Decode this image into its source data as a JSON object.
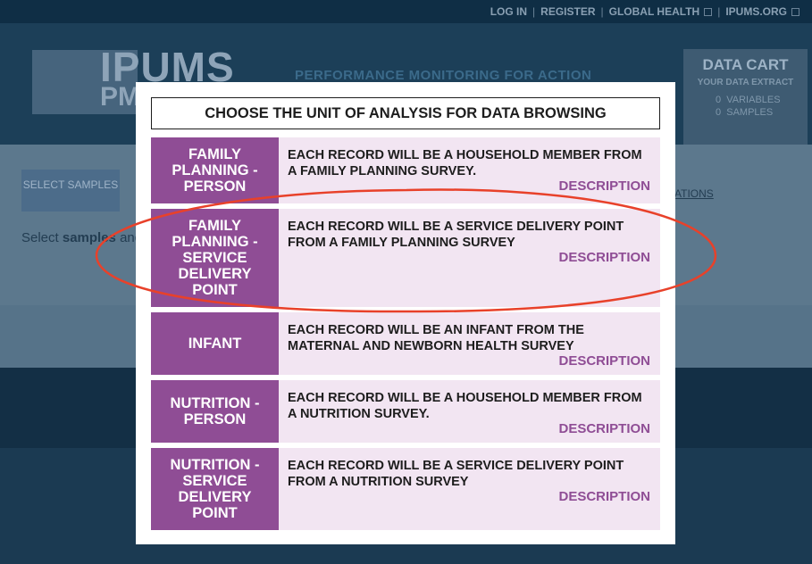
{
  "toplinks": {
    "login": "LOG IN",
    "register": "REGISTER",
    "global_health": "GLOBAL HEALTH",
    "ipums_org": "IPUMS.ORG",
    "separator": "|"
  },
  "header": {
    "logo_text": "IPUMS",
    "logo_sub": "PM",
    "tagline": "PERFORMANCE MONITORING FOR ACTION"
  },
  "datacart": {
    "title": "DATA CART",
    "subtitle": "YOUR DATA EXTRACT",
    "variables_count": "0",
    "variables_label": "VARIABLES",
    "samples_count": "0",
    "samples_label": "SAMPLES"
  },
  "page": {
    "select_samples": "SELECT SAMPLES",
    "select_text_prefix": "Select ",
    "select_text_bold": "samples",
    "select_text_suffix": " and",
    "partial_link": "ATIONS"
  },
  "modal": {
    "title": "CHOOSE THE UNIT OF ANALYSIS FOR DATA BROWSING",
    "link_label": "DESCRIPTION",
    "options": [
      {
        "label": "FAMILY PLANNING - PERSON",
        "description": "EACH RECORD WILL BE A HOUSEHOLD MEMBER FROM A FAMILY PLANNING SURVEY."
      },
      {
        "label": "FAMILY PLANNING - SERVICE DELIVERY POINT",
        "description": "EACH RECORD WILL BE A SERVICE DELIVERY POINT FROM A FAMILY PLANNING SURVEY"
      },
      {
        "label": "INFANT",
        "description": "EACH RECORD WILL BE AN INFANT FROM THE MATERNAL AND NEWBORN HEALTH SURVEY"
      },
      {
        "label": "NUTRITION - PERSON",
        "description": "EACH RECORD WILL BE A HOUSEHOLD MEMBER FROM A NUTRITION SURVEY."
      },
      {
        "label": "NUTRITION - SERVICE DELIVERY POINT",
        "description": "EACH RECORD WILL BE A SERVICE DELIVERY POINT FROM A NUTRITION SURVEY"
      }
    ]
  },
  "colors": {
    "accent_purple": "#8f4d95",
    "option_bg": "#f2e5f2",
    "annotation_red": "#e8412a"
  }
}
